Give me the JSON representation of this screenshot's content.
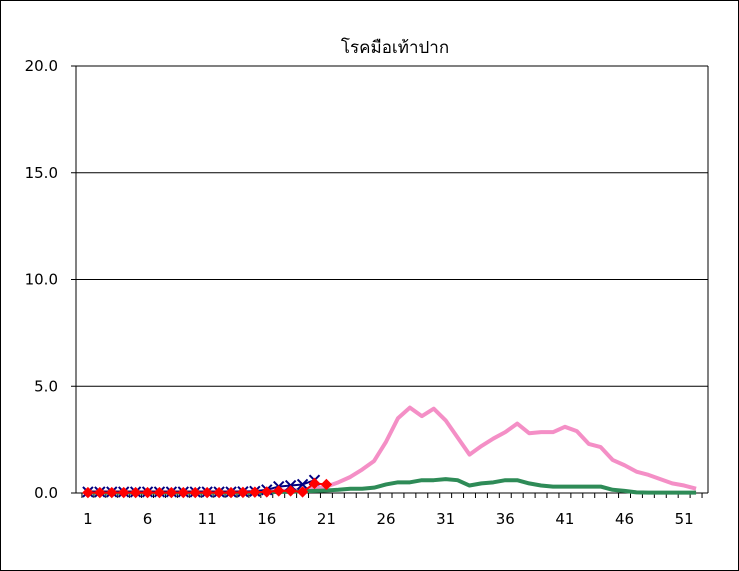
{
  "chart_data": {
    "type": "line",
    "title": "โรคมือเท้าปาก",
    "xlabel": "",
    "ylabel": "",
    "ylim": [
      0,
      20
    ],
    "xlim": [
      0,
      53
    ],
    "grid": true,
    "y_ticks": [
      "0.0",
      "5.0",
      "10.0",
      "15.0",
      "20.0"
    ],
    "x_ticks": [
      "1",
      "6",
      "11",
      "16",
      "21",
      "26",
      "31",
      "36",
      "41",
      "46",
      "51"
    ],
    "series": [
      {
        "color": "#f48fc6",
        "marker": "none",
        "x": [
          1,
          2,
          3,
          4,
          5,
          6,
          7,
          8,
          9,
          10,
          11,
          12,
          13,
          14,
          15,
          16,
          17,
          18,
          19,
          20,
          21,
          22,
          23,
          24,
          25,
          26,
          27,
          28,
          29,
          30,
          31,
          32,
          33,
          34,
          35,
          36,
          37,
          38,
          39,
          40,
          41,
          42,
          43,
          44,
          45,
          46,
          47,
          48,
          49,
          50,
          51,
          52
        ],
        "values": [
          0.05,
          0.05,
          0.05,
          0.05,
          0.05,
          0.05,
          0.05,
          0.05,
          0.05,
          0.05,
          0.05,
          0.05,
          0.05,
          0.05,
          0.05,
          0.08,
          0.1,
          0.12,
          0.15,
          0.2,
          0.3,
          0.5,
          0.75,
          1.1,
          1.5,
          2.4,
          3.5,
          4.0,
          3.6,
          3.95,
          3.4,
          2.6,
          1.8,
          2.2,
          2.55,
          2.85,
          3.25,
          2.8,
          2.85,
          2.85,
          3.1,
          2.9,
          2.3,
          2.15,
          1.55,
          1.3,
          1.0,
          0.85,
          0.65,
          0.45,
          0.35,
          0.2
        ]
      },
      {
        "color": "#2e8b57",
        "marker": "none",
        "x": [
          1,
          2,
          3,
          4,
          5,
          6,
          7,
          8,
          9,
          10,
          11,
          12,
          13,
          14,
          15,
          16,
          17,
          18,
          19,
          20,
          21,
          22,
          23,
          24,
          25,
          26,
          27,
          28,
          29,
          30,
          31,
          32,
          33,
          34,
          35,
          36,
          37,
          38,
          39,
          40,
          41,
          42,
          43,
          44,
          45,
          46,
          47,
          48,
          49,
          50,
          51,
          52
        ],
        "values": [
          0.02,
          0.02,
          0.02,
          0.02,
          0.02,
          0.02,
          0.02,
          0.02,
          0.02,
          0.02,
          0.02,
          0.02,
          0.02,
          0.02,
          0.02,
          0.03,
          0.05,
          0.05,
          0.08,
          0.1,
          0.12,
          0.15,
          0.2,
          0.2,
          0.25,
          0.4,
          0.5,
          0.5,
          0.6,
          0.6,
          0.65,
          0.6,
          0.35,
          0.45,
          0.5,
          0.6,
          0.6,
          0.45,
          0.35,
          0.3,
          0.3,
          0.3,
          0.3,
          0.3,
          0.15,
          0.1,
          0.03,
          0.02,
          0.02,
          0.02,
          0.02,
          0.02
        ]
      },
      {
        "color": "#000080",
        "marker": "x",
        "x": [
          1,
          2,
          3,
          4,
          5,
          6,
          7,
          8,
          9,
          10,
          11,
          12,
          13,
          14,
          15,
          16,
          17,
          18,
          19,
          20
        ],
        "values": [
          0.05,
          0.05,
          0.05,
          0.05,
          0.05,
          0.05,
          0.05,
          0.05,
          0.05,
          0.05,
          0.05,
          0.05,
          0.05,
          0.06,
          0.08,
          0.15,
          0.3,
          0.35,
          0.4,
          0.6
        ]
      },
      {
        "color": "#ff0000",
        "marker": "diamond",
        "x": [
          1,
          2,
          3,
          4,
          5,
          6,
          7,
          8,
          9,
          10,
          11,
          12,
          13,
          14,
          15,
          16,
          17,
          18,
          19,
          20,
          21
        ],
        "values": [
          0.02,
          0.02,
          0.02,
          0.02,
          0.02,
          0.02,
          0.02,
          0.02,
          0.02,
          0.02,
          0.02,
          0.02,
          0.02,
          0.03,
          0.04,
          0.05,
          0.1,
          0.1,
          0.05,
          0.45,
          0.4
        ]
      }
    ]
  }
}
